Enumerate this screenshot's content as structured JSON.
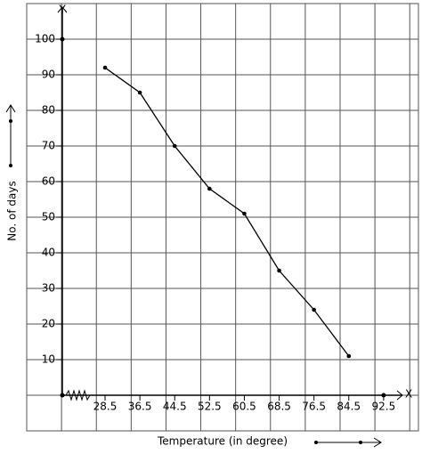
{
  "chart_data": {
    "type": "line",
    "x_axis_label": "Temperature (in degree)",
    "y_axis_label": "No. of days",
    "x_axis_name": "X",
    "y_axis_name": "Y",
    "x": [
      28.5,
      36.5,
      44.5,
      52.5,
      60.5,
      68.5,
      76.5,
      84.5
    ],
    "values": [
      92,
      85,
      70,
      58,
      51,
      35,
      24,
      11
    ],
    "color": "#000000",
    "xlim": [
      10.5,
      100.5
    ],
    "ylim": [
      -10,
      110
    ],
    "xticks": [
      28.5,
      36.5,
      44.5,
      52.5,
      60.5,
      68.5,
      76.5,
      84.5,
      92.5
    ],
    "yticks": [
      10,
      20,
      30,
      40,
      50,
      60,
      70,
      80,
      90,
      100
    ],
    "grid": true
  }
}
